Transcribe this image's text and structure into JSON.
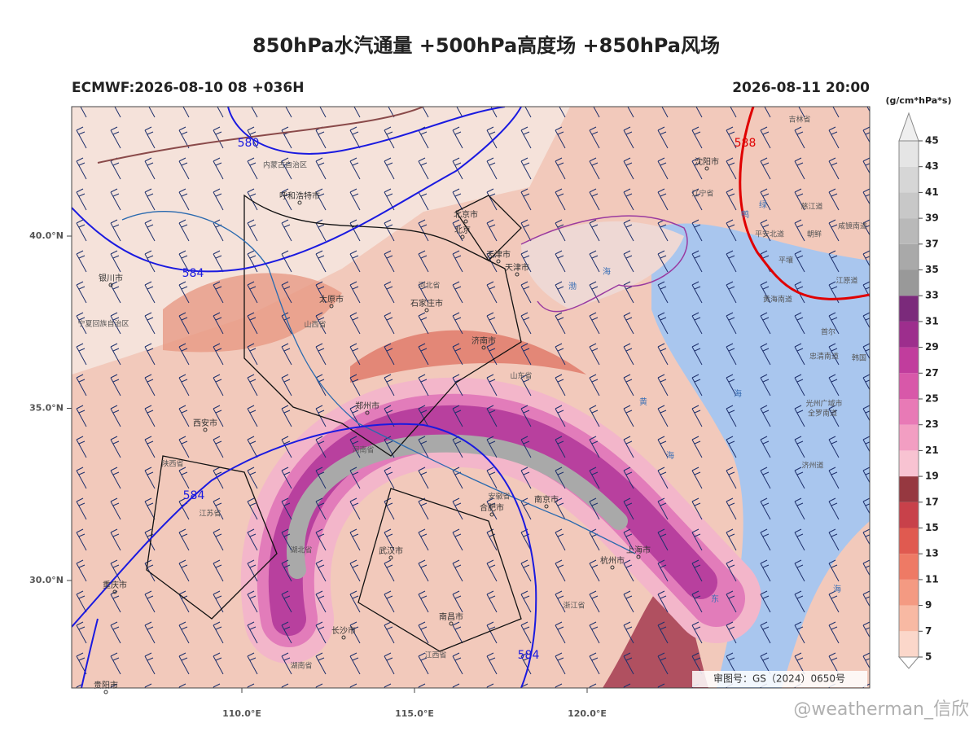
{
  "title": "850hPa水汽通量 +500hPa高度场 +850hPa风场",
  "subtitle_left": "ECMWF:2026-08-10 08 +036H",
  "subtitle_right": "2026-08-11 20:00",
  "colorbar": {
    "unit": "(g/cm*hPa*s)",
    "ticks": [
      5,
      7,
      9,
      11,
      13,
      15,
      17,
      19,
      21,
      23,
      25,
      27,
      29,
      31,
      33,
      35,
      37,
      39,
      41,
      43,
      45
    ],
    "colors": [
      "#fbd7ca",
      "#f8b9a3",
      "#f49a82",
      "#ee7a65",
      "#e05a50",
      "#c8414a",
      "#963840",
      "#f8c3d2",
      "#f29ec2",
      "#e87ab6",
      "#d858a9",
      "#c13d9d",
      "#9d2e8d",
      "#7b2a7b",
      "#999999",
      "#a9a9a9",
      "#b9b9b9",
      "#c8c8c8",
      "#d6d6d6",
      "#e5e5e5"
    ]
  },
  "lat_ticks": [
    {
      "value": 40,
      "label": "40.0°N"
    },
    {
      "value": 35,
      "label": "35.0°N"
    },
    {
      "value": 30,
      "label": "30.0°N"
    }
  ],
  "lon_ticks": [
    {
      "value": 110,
      "label": "110.0°E"
    },
    {
      "value": 115,
      "label": "115.0°E"
    },
    {
      "value": 120,
      "label": "120.0°E"
    }
  ],
  "contour_labels": [
    "580",
    "584",
    "584",
    "584",
    "588"
  ],
  "cities": [
    "北京市",
    "北京",
    "天津市",
    "天津市",
    "石家庄市",
    "太原市",
    "呼和浩特市",
    "济南市",
    "郑州市",
    "西安市",
    "合肥市",
    "南京市",
    "武汉市",
    "杭州市",
    "上海市",
    "南昌市",
    "长沙市",
    "重庆市",
    "沈阳市",
    "银川市",
    "贵阳市"
  ],
  "regions": [
    "内蒙古自治区",
    "河北省",
    "山西省",
    "山东省",
    "河南省",
    "安徽省",
    "湖北省",
    "江西省",
    "湖南省",
    "浙江省",
    "陕西省",
    "辽宁省",
    "吉林省",
    "江苏省",
    "宁夏回族自治区",
    "平安北道",
    "朝鲜",
    "慈江道",
    "咸镜南道",
    "黄海南道",
    "江原道",
    "平壤",
    "首尔",
    "忠清南道",
    "韩国",
    "光州广域市",
    "全罗南道",
    "济州道"
  ],
  "seas": [
    "渤",
    "海",
    "黄",
    "海",
    "海",
    "海",
    "东",
    "绿",
    "鸭"
  ],
  "map_approval": "审图号：GS（2024）0650号",
  "watermark": "@weatherman_信欣"
}
